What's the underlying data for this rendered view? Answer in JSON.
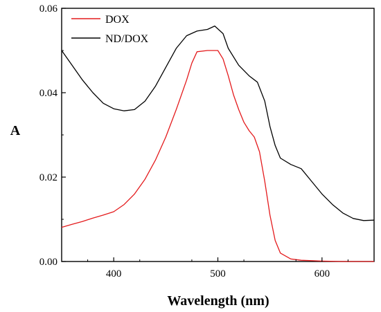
{
  "chart_data": {
    "type": "line",
    "xlabel": "Wavelength (nm)",
    "ylabel": "A",
    "xlim": [
      350,
      650
    ],
    "ylim": [
      0,
      0.06
    ],
    "x_ticks": [
      "400",
      "500",
      "600"
    ],
    "y_ticks": [
      "0.00",
      "0.02",
      "0.04",
      "0.06"
    ],
    "grid": false,
    "legend_position": "top-left",
    "series": [
      {
        "name": "DOX",
        "color": "#e41a1c",
        "points": [
          [
            350,
            0.0081
          ],
          [
            360,
            0.0088
          ],
          [
            370,
            0.0095
          ],
          [
            380,
            0.0103
          ],
          [
            390,
            0.011
          ],
          [
            400,
            0.0118
          ],
          [
            410,
            0.0135
          ],
          [
            420,
            0.016
          ],
          [
            430,
            0.0195
          ],
          [
            440,
            0.024
          ],
          [
            450,
            0.0295
          ],
          [
            460,
            0.036
          ],
          [
            470,
            0.043
          ],
          [
            475,
            0.047
          ],
          [
            480,
            0.0497
          ],
          [
            490,
            0.05
          ],
          [
            500,
            0.05
          ],
          [
            505,
            0.048
          ],
          [
            510,
            0.044
          ],
          [
            515,
            0.0395
          ],
          [
            520,
            0.036
          ],
          [
            525,
            0.033
          ],
          [
            530,
            0.031
          ],
          [
            535,
            0.0295
          ],
          [
            540,
            0.026
          ],
          [
            545,
            0.019
          ],
          [
            550,
            0.011
          ],
          [
            555,
            0.005
          ],
          [
            560,
            0.002
          ],
          [
            570,
            0.0006
          ],
          [
            580,
            0.0003
          ],
          [
            600,
            0.0001
          ],
          [
            620,
            0.0
          ],
          [
            650,
            0.0
          ]
        ]
      },
      {
        "name": "ND/DOX",
        "color": "#000000",
        "points": [
          [
            350,
            0.05
          ],
          [
            360,
            0.0465
          ],
          [
            370,
            0.043
          ],
          [
            380,
            0.04
          ],
          [
            390,
            0.0375
          ],
          [
            400,
            0.0362
          ],
          [
            410,
            0.0357
          ],
          [
            420,
            0.036
          ],
          [
            430,
            0.038
          ],
          [
            440,
            0.0415
          ],
          [
            450,
            0.046
          ],
          [
            460,
            0.0505
          ],
          [
            470,
            0.0535
          ],
          [
            480,
            0.0546
          ],
          [
            490,
            0.055
          ],
          [
            497,
            0.0558
          ],
          [
            505,
            0.054
          ],
          [
            510,
            0.0505
          ],
          [
            520,
            0.0465
          ],
          [
            530,
            0.044
          ],
          [
            538,
            0.0425
          ],
          [
            545,
            0.038
          ],
          [
            550,
            0.032
          ],
          [
            555,
            0.0275
          ],
          [
            560,
            0.0245
          ],
          [
            570,
            0.023
          ],
          [
            580,
            0.022
          ],
          [
            590,
            0.019
          ],
          [
            600,
            0.016
          ],
          [
            610,
            0.0135
          ],
          [
            620,
            0.0115
          ],
          [
            630,
            0.0102
          ],
          [
            640,
            0.0097
          ],
          [
            650,
            0.0098
          ]
        ]
      }
    ]
  }
}
